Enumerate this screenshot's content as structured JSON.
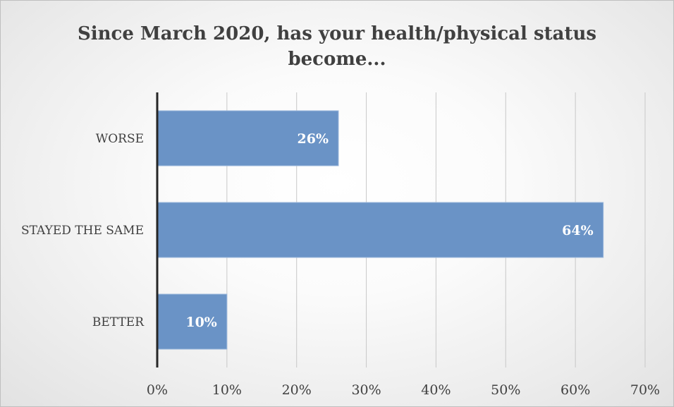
{
  "chart_data": {
    "type": "bar",
    "orientation": "horizontal",
    "title_lines": [
      "Since March 2020, has your health/physical status",
      "become..."
    ],
    "categories": [
      "WORSE",
      "STAYED THE SAME",
      "BETTER"
    ],
    "values": [
      26,
      64,
      10
    ],
    "data_labels": [
      "26%",
      "64%",
      "10%"
    ],
    "x_ticks": [
      "0%",
      "10%",
      "20%",
      "30%",
      "40%",
      "50%",
      "60%",
      "70%"
    ],
    "xlim": [
      0,
      70
    ],
    "xlabel": "",
    "ylabel": "",
    "grid": true,
    "legend": "none",
    "bar_color": "#6a93c6"
  }
}
